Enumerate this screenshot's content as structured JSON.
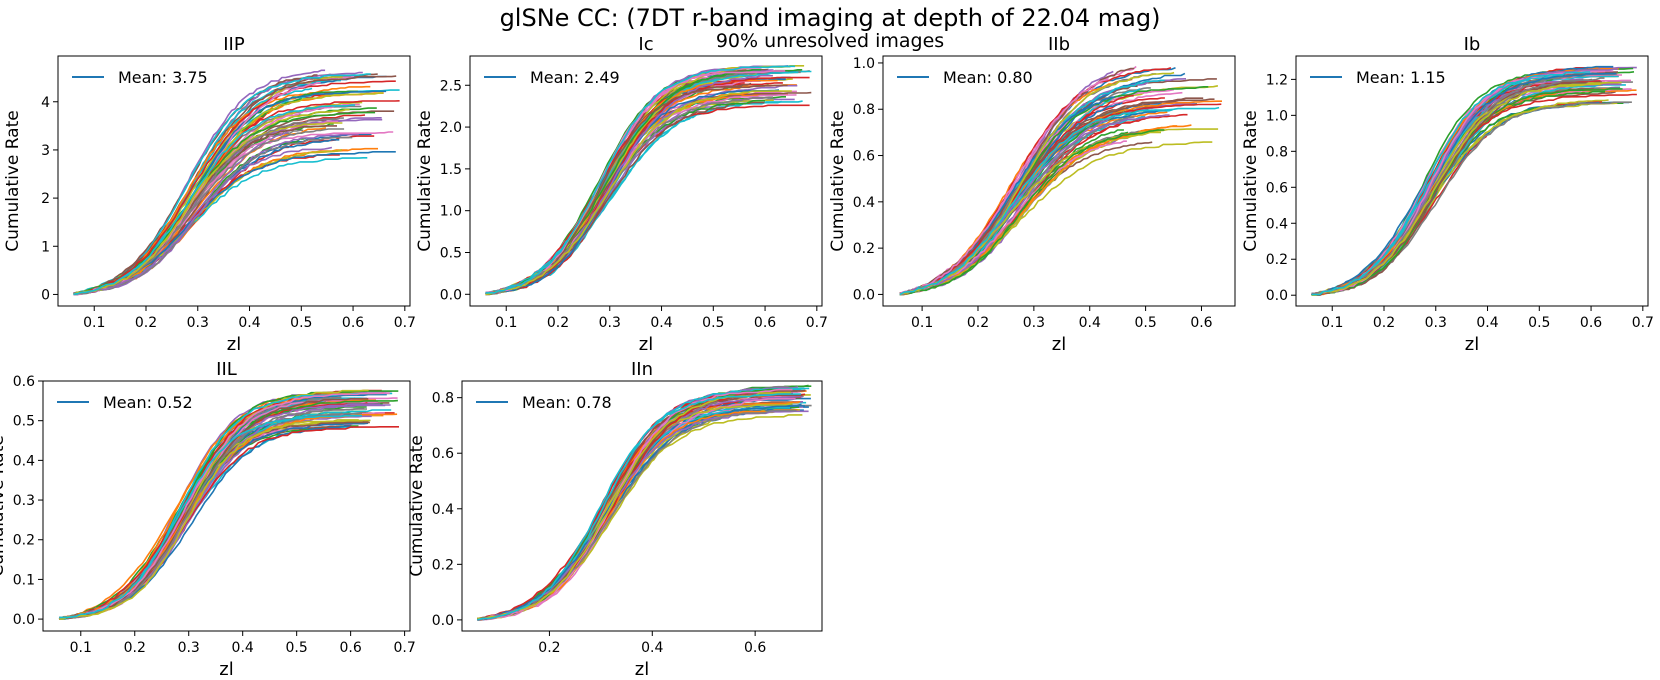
{
  "figure": {
    "title_line1": "glSNe CC: (7DT  r-band imaging at depth of 22.04 mag)",
    "title_line2": "90% unresolved images"
  },
  "chart_data": [
    {
      "type": "line",
      "title": "IIP",
      "xlabel": "zl",
      "ylabel": "Cumulative Rate",
      "xlim": [
        0.03,
        0.71
      ],
      "ylim": [
        -0.24,
        4.95
      ],
      "xticks": [
        0.1,
        0.2,
        0.3,
        0.4,
        0.5,
        0.6,
        0.7
      ],
      "xtick_labels": [
        "0.1",
        "0.2",
        "0.3",
        "0.4",
        "0.5",
        "0.6",
        "0.7"
      ],
      "yticks": [
        0,
        1,
        2,
        3,
        4
      ],
      "ytick_labels": [
        "0",
        "1",
        "2",
        "3",
        "4"
      ],
      "legend": {
        "label": "Mean: 3.75",
        "color": "#1f77b4",
        "location": "upper-left"
      },
      "mean": 3.75,
      "curve_count": 60,
      "x_start": 0.06,
      "x_end_range": [
        0.5,
        0.69
      ],
      "final_value_range": [
        2.78,
        4.65
      ],
      "midpoint_z": 0.29,
      "steepness": 16
    },
    {
      "type": "line",
      "title": "Ic",
      "xlabel": "zl",
      "ylabel": "Cumulative Rate",
      "xlim": [
        0.03,
        0.71
      ],
      "ylim": [
        -0.14,
        2.85
      ],
      "xticks": [
        0.1,
        0.2,
        0.3,
        0.4,
        0.5,
        0.6,
        0.7
      ],
      "xtick_labels": [
        "0.1",
        "0.2",
        "0.3",
        "0.4",
        "0.5",
        "0.6",
        "0.7"
      ],
      "yticks": [
        0,
        0.5,
        1.0,
        1.5,
        2.0,
        2.5
      ],
      "ytick_labels": [
        "0.0",
        "0.5",
        "1.0",
        "1.5",
        "2.0",
        "2.5"
      ],
      "legend": {
        "label": "Mean: 2.49",
        "color": "#1f77b4",
        "location": "upper-left"
      },
      "mean": 2.49,
      "curve_count": 60,
      "x_start": 0.06,
      "x_end_range": [
        0.56,
        0.69
      ],
      "final_value_range": [
        2.25,
        2.73
      ],
      "midpoint_z": 0.29,
      "steepness": 17
    },
    {
      "type": "line",
      "title": "IIb",
      "xlabel": "zl",
      "ylabel": "Cumulative Rate",
      "xlim": [
        0.03,
        0.66
      ],
      "ylim": [
        -0.05,
        1.03
      ],
      "xticks": [
        0.1,
        0.2,
        0.3,
        0.4,
        0.5,
        0.6
      ],
      "xtick_labels": [
        "0.1",
        "0.2",
        "0.3",
        "0.4",
        "0.5",
        "0.6"
      ],
      "yticks": [
        0,
        0.2,
        0.4,
        0.6,
        0.8,
        1.0
      ],
      "ytick_labels": [
        "0.0",
        "0.2",
        "0.4",
        "0.6",
        "0.8",
        "1.0"
      ],
      "legend": {
        "label": "Mean: 0.80",
        "color": "#1f77b4",
        "location": "upper-left"
      },
      "mean": 0.8,
      "curve_count": 60,
      "x_start": 0.06,
      "x_end_range": [
        0.43,
        0.64
      ],
      "final_value_range": [
        0.65,
        0.98
      ],
      "midpoint_z": 0.27,
      "steepness": 16
    },
    {
      "type": "line",
      "title": "Ib",
      "xlabel": "zl",
      "ylabel": "Cumulative Rate",
      "xlim": [
        0.03,
        0.71
      ],
      "ylim": [
        -0.06,
        1.33
      ],
      "xticks": [
        0.1,
        0.2,
        0.3,
        0.4,
        0.5,
        0.6,
        0.7
      ],
      "xtick_labels": [
        "0.1",
        "0.2",
        "0.3",
        "0.4",
        "0.5",
        "0.6",
        "0.7"
      ],
      "yticks": [
        0,
        0.2,
        0.4,
        0.6,
        0.8,
        1.0,
        1.2
      ],
      "ytick_labels": [
        "0.0",
        "0.2",
        "0.4",
        "0.6",
        "0.8",
        "1.0",
        "1.2"
      ],
      "legend": {
        "label": "Mean: 1.15",
        "color": "#1f77b4",
        "location": "upper-left"
      },
      "mean": 1.15,
      "curve_count": 60,
      "x_start": 0.06,
      "x_end_range": [
        0.58,
        0.69
      ],
      "final_value_range": [
        1.04,
        1.27
      ],
      "midpoint_z": 0.29,
      "steepness": 17
    },
    {
      "type": "line",
      "title": "IIL",
      "xlabel": "zl",
      "ylabel": "Cumulative Rate",
      "xlim": [
        0.03,
        0.71
      ],
      "ylim": [
        -0.03,
        0.6
      ],
      "xticks": [
        0.1,
        0.2,
        0.3,
        0.4,
        0.5,
        0.6,
        0.7
      ],
      "xtick_labels": [
        "0.1",
        "0.2",
        "0.3",
        "0.4",
        "0.5",
        "0.6",
        "0.7"
      ],
      "yticks": [
        0,
        0.1,
        0.2,
        0.3,
        0.4,
        0.5,
        0.6
      ],
      "ytick_labels": [
        "0.0",
        "0.1",
        "0.2",
        "0.3",
        "0.4",
        "0.5",
        "0.6"
      ],
      "legend": {
        "label": "Mean: 0.52",
        "color": "#1f77b4",
        "location": "upper-left"
      },
      "mean": 0.52,
      "curve_count": 60,
      "x_start": 0.06,
      "x_end_range": [
        0.58,
        0.69
      ],
      "final_value_range": [
        0.48,
        0.58
      ],
      "midpoint_z": 0.29,
      "steepness": 18
    },
    {
      "type": "line",
      "title": "IIn",
      "xlabel": "zl",
      "ylabel": "Cumulative Rate",
      "xlim": [
        0.03,
        0.73
      ],
      "ylim": [
        -0.04,
        0.86
      ],
      "xticks": [
        0.2,
        0.4,
        0.6
      ],
      "xtick_labels": [
        "0.2",
        "0.4",
        "0.6"
      ],
      "yticks": [
        0,
        0.2,
        0.4,
        0.6,
        0.8
      ],
      "ytick_labels": [
        "0.0",
        "0.2",
        "0.4",
        "0.6",
        "0.8"
      ],
      "legend": {
        "label": "Mean: 0.78",
        "color": "#1f77b4",
        "location": "upper-left"
      },
      "mean": 0.78,
      "curve_count": 60,
      "x_start": 0.06,
      "x_end_range": [
        0.66,
        0.71
      ],
      "final_value_range": [
        0.73,
        0.84
      ],
      "midpoint_z": 0.31,
      "steepness": 16
    }
  ],
  "palette": [
    "#1f77b4",
    "#ff7f0e",
    "#2ca02c",
    "#d62728",
    "#9467bd",
    "#8c564b",
    "#e377c2",
    "#7f7f7f",
    "#bcbd22",
    "#17becf"
  ]
}
